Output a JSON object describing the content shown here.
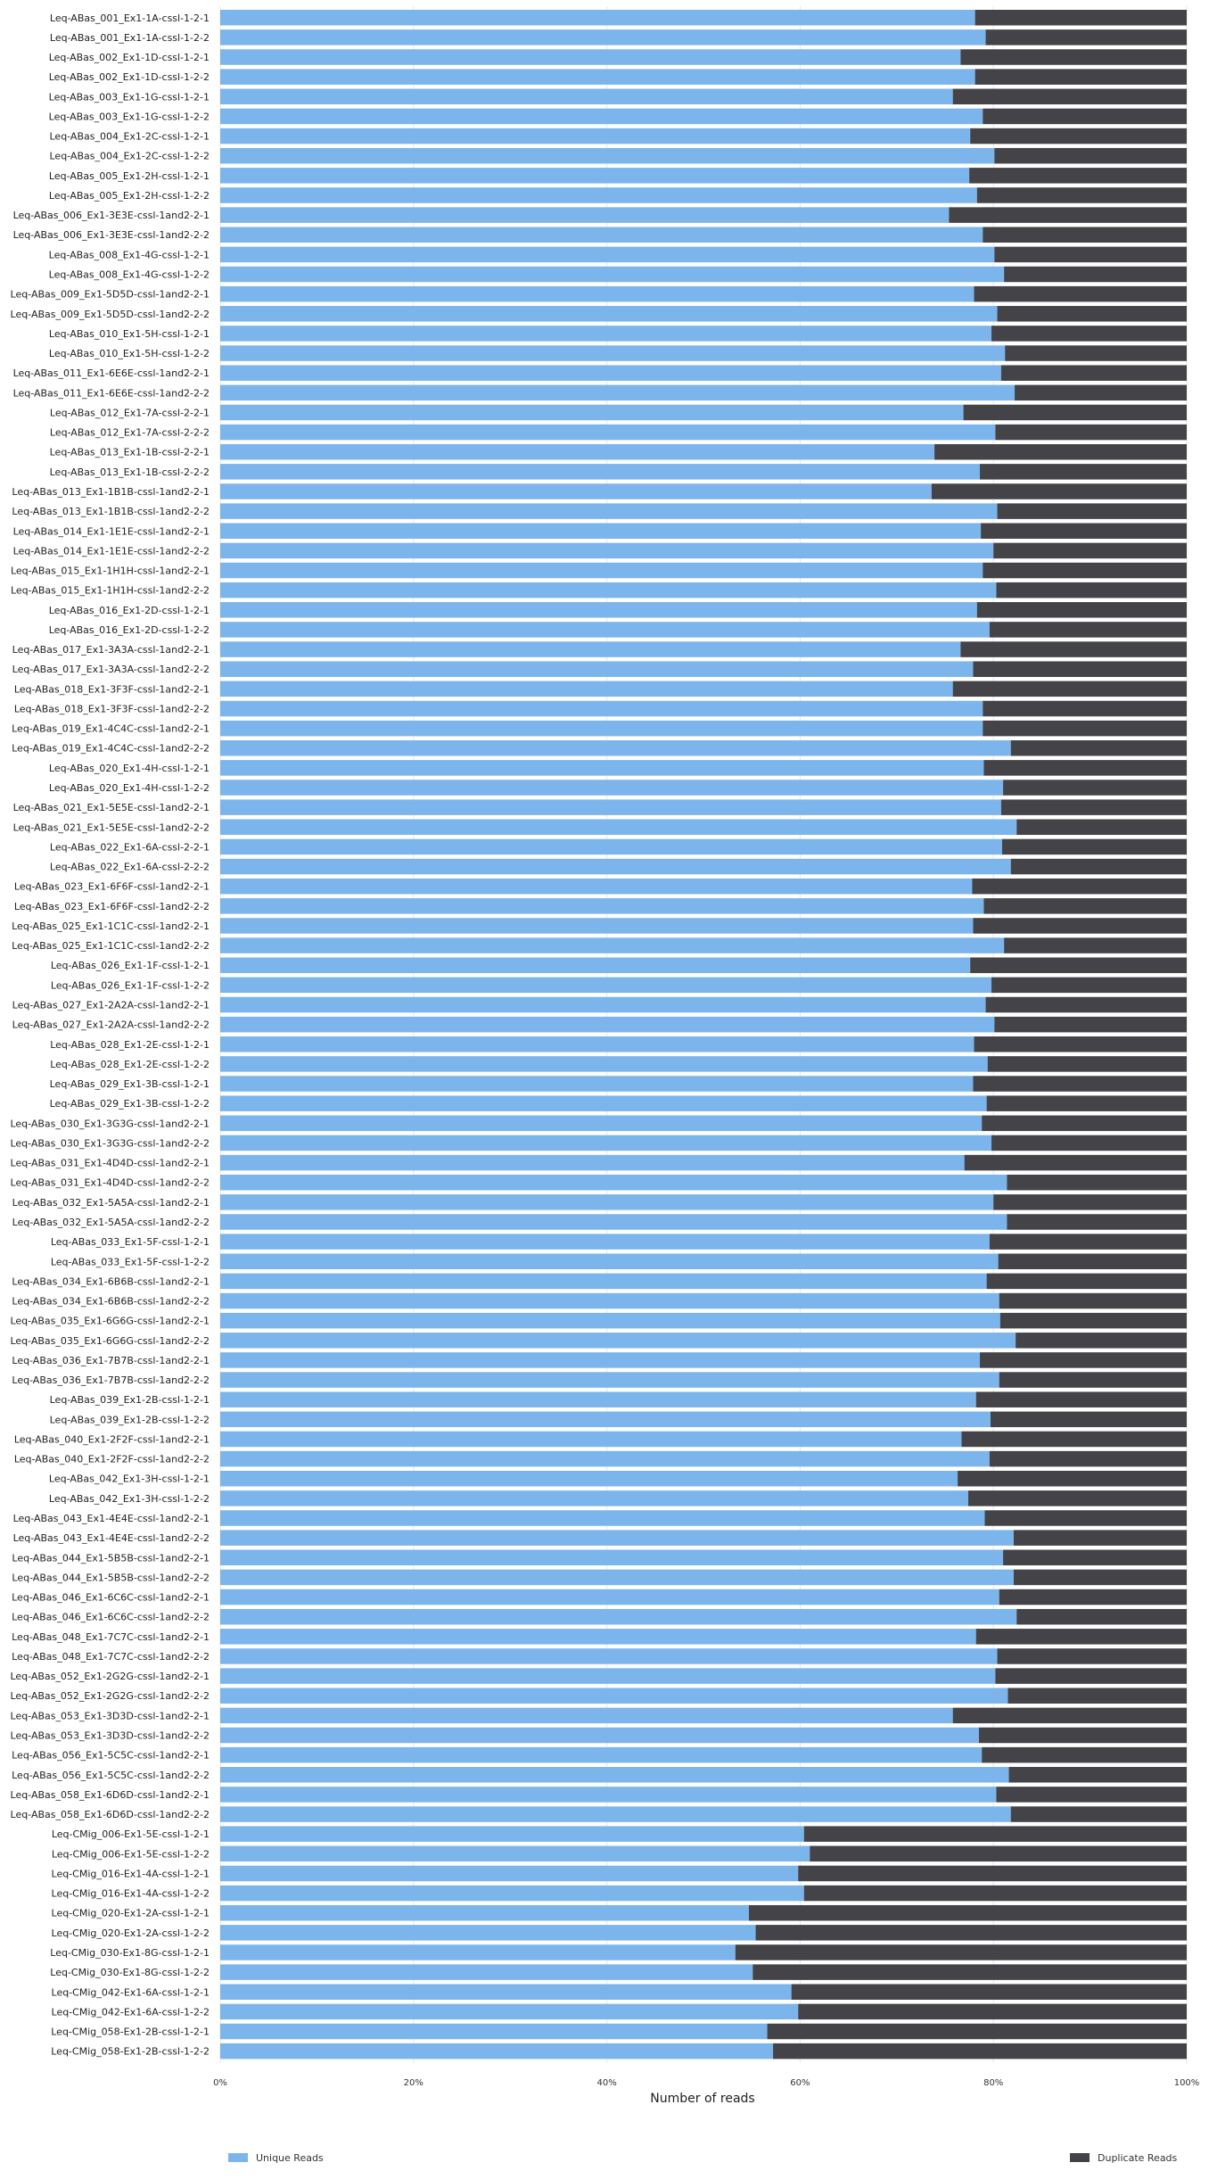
{
  "chart_data": {
    "type": "bar",
    "orientation": "horizontal",
    "stacked": true,
    "percent": true,
    "xlabel": "Number of reads",
    "xlim": [
      0,
      100
    ],
    "ticks": [
      "0%",
      "20%",
      "40%",
      "60%",
      "80%",
      "100%"
    ],
    "grid": true,
    "legend_placement": "bottom",
    "colors": {
      "unique": "#7cb5ec",
      "duplicate": "#434348"
    },
    "series": [
      {
        "name": "Unique Reads",
        "color": "#7cb5ec"
      },
      {
        "name": "Duplicate Reads",
        "color": "#434348"
      }
    ],
    "categories": [
      "Leq-ABas_001_Ex1-1A-cssl-1-2-1",
      "Leq-ABas_001_Ex1-1A-cssl-1-2-2",
      "Leq-ABas_002_Ex1-1D-cssl-1-2-1",
      "Leq-ABas_002_Ex1-1D-cssl-1-2-2",
      "Leq-ABas_003_Ex1-1G-cssl-1-2-1",
      "Leq-ABas_003_Ex1-1G-cssl-1-2-2",
      "Leq-ABas_004_Ex1-2C-cssl-1-2-1",
      "Leq-ABas_004_Ex1-2C-cssl-1-2-2",
      "Leq-ABas_005_Ex1-2H-cssl-1-2-1",
      "Leq-ABas_005_Ex1-2H-cssl-1-2-2",
      "Leq-ABas_006_Ex1-3E3E-cssl-1and2-2-1",
      "Leq-ABas_006_Ex1-3E3E-cssl-1and2-2-2",
      "Leq-ABas_008_Ex1-4G-cssl-1-2-1",
      "Leq-ABas_008_Ex1-4G-cssl-1-2-2",
      "Leq-ABas_009_Ex1-5D5D-cssl-1and2-2-1",
      "Leq-ABas_009_Ex1-5D5D-cssl-1and2-2-2",
      "Leq-ABas_010_Ex1-5H-cssl-1-2-1",
      "Leq-ABas_010_Ex1-5H-cssl-1-2-2",
      "Leq-ABas_011_Ex1-6E6E-cssl-1and2-2-1",
      "Leq-ABas_011_Ex1-6E6E-cssl-1and2-2-2",
      "Leq-ABas_012_Ex1-7A-cssl-2-2-1",
      "Leq-ABas_012_Ex1-7A-cssl-2-2-2",
      "Leq-ABas_013_Ex1-1B-cssl-2-2-1",
      "Leq-ABas_013_Ex1-1B-cssl-2-2-2",
      "Leq-ABas_013_Ex1-1B1B-cssl-1and2-2-1",
      "Leq-ABas_013_Ex1-1B1B-cssl-1and2-2-2",
      "Leq-ABas_014_Ex1-1E1E-cssl-1and2-2-1",
      "Leq-ABas_014_Ex1-1E1E-cssl-1and2-2-2",
      "Leq-ABas_015_Ex1-1H1H-cssl-1and2-2-1",
      "Leq-ABas_015_Ex1-1H1H-cssl-1and2-2-2",
      "Leq-ABas_016_Ex1-2D-cssl-1-2-1",
      "Leq-ABas_016_Ex1-2D-cssl-1-2-2",
      "Leq-ABas_017_Ex1-3A3A-cssl-1and2-2-1",
      "Leq-ABas_017_Ex1-3A3A-cssl-1and2-2-2",
      "Leq-ABas_018_Ex1-3F3F-cssl-1and2-2-1",
      "Leq-ABas_018_Ex1-3F3F-cssl-1and2-2-2",
      "Leq-ABas_019_Ex1-4C4C-cssl-1and2-2-1",
      "Leq-ABas_019_Ex1-4C4C-cssl-1and2-2-2",
      "Leq-ABas_020_Ex1-4H-cssl-1-2-1",
      "Leq-ABas_020_Ex1-4H-cssl-1-2-2",
      "Leq-ABas_021_Ex1-5E5E-cssl-1and2-2-1",
      "Leq-ABas_021_Ex1-5E5E-cssl-1and2-2-2",
      "Leq-ABas_022_Ex1-6A-cssl-2-2-1",
      "Leq-ABas_022_Ex1-6A-cssl-2-2-2",
      "Leq-ABas_023_Ex1-6F6F-cssl-1and2-2-1",
      "Leq-ABas_023_Ex1-6F6F-cssl-1and2-2-2",
      "Leq-ABas_025_Ex1-1C1C-cssl-1and2-2-1",
      "Leq-ABas_025_Ex1-1C1C-cssl-1and2-2-2",
      "Leq-ABas_026_Ex1-1F-cssl-1-2-1",
      "Leq-ABas_026_Ex1-1F-cssl-1-2-2",
      "Leq-ABas_027_Ex1-2A2A-cssl-1and2-2-1",
      "Leq-ABas_027_Ex1-2A2A-cssl-1and2-2-2",
      "Leq-ABas_028_Ex1-2E-cssl-1-2-1",
      "Leq-ABas_028_Ex1-2E-cssl-1-2-2",
      "Leq-ABas_029_Ex1-3B-cssl-1-2-1",
      "Leq-ABas_029_Ex1-3B-cssl-1-2-2",
      "Leq-ABas_030_Ex1-3G3G-cssl-1and2-2-1",
      "Leq-ABas_030_Ex1-3G3G-cssl-1and2-2-2",
      "Leq-ABas_031_Ex1-4D4D-cssl-1and2-2-1",
      "Leq-ABas_031_Ex1-4D4D-cssl-1and2-2-2",
      "Leq-ABas_032_Ex1-5A5A-cssl-1and2-2-1",
      "Leq-ABas_032_Ex1-5A5A-cssl-1and2-2-2",
      "Leq-ABas_033_Ex1-5F-cssl-1-2-1",
      "Leq-ABas_033_Ex1-5F-cssl-1-2-2",
      "Leq-ABas_034_Ex1-6B6B-cssl-1and2-2-1",
      "Leq-ABas_034_Ex1-6B6B-cssl-1and2-2-2",
      "Leq-ABas_035_Ex1-6G6G-cssl-1and2-2-1",
      "Leq-ABas_035_Ex1-6G6G-cssl-1and2-2-2",
      "Leq-ABas_036_Ex1-7B7B-cssl-1and2-2-1",
      "Leq-ABas_036_Ex1-7B7B-cssl-1and2-2-2",
      "Leq-ABas_039_Ex1-2B-cssl-1-2-1",
      "Leq-ABas_039_Ex1-2B-cssl-1-2-2",
      "Leq-ABas_040_Ex1-2F2F-cssl-1and2-2-1",
      "Leq-ABas_040_Ex1-2F2F-cssl-1and2-2-2",
      "Leq-ABas_042_Ex1-3H-cssl-1-2-1",
      "Leq-ABas_042_Ex1-3H-cssl-1-2-2",
      "Leq-ABas_043_Ex1-4E4E-cssl-1and2-2-1",
      "Leq-ABas_043_Ex1-4E4E-cssl-1and2-2-2",
      "Leq-ABas_044_Ex1-5B5B-cssl-1and2-2-1",
      "Leq-ABas_044_Ex1-5B5B-cssl-1and2-2-2",
      "Leq-ABas_046_Ex1-6C6C-cssl-1and2-2-1",
      "Leq-ABas_046_Ex1-6C6C-cssl-1and2-2-2",
      "Leq-ABas_048_Ex1-7C7C-cssl-1and2-2-1",
      "Leq-ABas_048_Ex1-7C7C-cssl-1and2-2-2",
      "Leq-ABas_052_Ex1-2G2G-cssl-1and2-2-1",
      "Leq-ABas_052_Ex1-2G2G-cssl-1and2-2-2",
      "Leq-ABas_053_Ex1-3D3D-cssl-1and2-2-1",
      "Leq-ABas_053_Ex1-3D3D-cssl-1and2-2-2",
      "Leq-ABas_056_Ex1-5C5C-cssl-1and2-2-1",
      "Leq-ABas_056_Ex1-5C5C-cssl-1and2-2-2",
      "Leq-ABas_058_Ex1-6D6D-cssl-1and2-2-1",
      "Leq-ABas_058_Ex1-6D6D-cssl-1and2-2-2",
      "Leq-CMig_006-Ex1-5E-cssl-1-2-1",
      "Leq-CMig_006-Ex1-5E-cssl-1-2-2",
      "Leq-CMig_016-Ex1-4A-cssl-1-2-1",
      "Leq-CMig_016-Ex1-4A-cssl-1-2-2",
      "Leq-CMig_020-Ex1-2A-cssl-1-2-1",
      "Leq-CMig_020-Ex1-2A-cssl-1-2-2",
      "Leq-CMig_030-Ex1-8G-cssl-1-2-1",
      "Leq-CMig_030-Ex1-8G-cssl-1-2-2",
      "Leq-CMig_042-Ex1-6A-cssl-1-2-1",
      "Leq-CMig_042-Ex1-6A-cssl-1-2-2",
      "Leq-CMig_058-Ex1-2B-cssl-1-2-1",
      "Leq-CMig_058-Ex1-2B-cssl-1-2-2"
    ],
    "unique_pct": [
      78.1,
      79.2,
      76.6,
      78.1,
      75.8,
      78.9,
      77.6,
      80.1,
      77.5,
      78.3,
      75.4,
      78.9,
      80.1,
      81.1,
      78.0,
      80.4,
      79.8,
      81.2,
      80.8,
      82.2,
      76.9,
      80.2,
      73.9,
      78.6,
      73.6,
      80.4,
      78.7,
      80.0,
      78.9,
      80.3,
      78.3,
      79.6,
      76.6,
      77.9,
      75.8,
      78.9,
      78.9,
      81.8,
      79.0,
      81.0,
      80.8,
      82.4,
      80.9,
      81.8,
      77.8,
      79.0,
      77.9,
      81.1,
      77.6,
      79.8,
      79.2,
      80.1,
      78.0,
      79.4,
      77.9,
      79.3,
      78.8,
      79.8,
      77.0,
      81.4,
      80.0,
      81.4,
      79.6,
      80.5,
      79.3,
      80.6,
      80.7,
      82.3,
      78.6,
      80.6,
      78.2,
      79.7,
      76.7,
      79.6,
      76.3,
      77.4,
      79.1,
      82.1,
      81.0,
      82.1,
      80.6,
      82.4,
      78.2,
      80.4,
      80.2,
      81.5,
      75.8,
      78.5,
      78.8,
      81.6,
      80.3,
      81.8,
      60.4,
      61.0,
      59.8,
      60.4,
      54.7,
      55.4,
      53.3,
      55.1,
      59.1,
      59.8,
      56.6,
      57.2
    ]
  }
}
